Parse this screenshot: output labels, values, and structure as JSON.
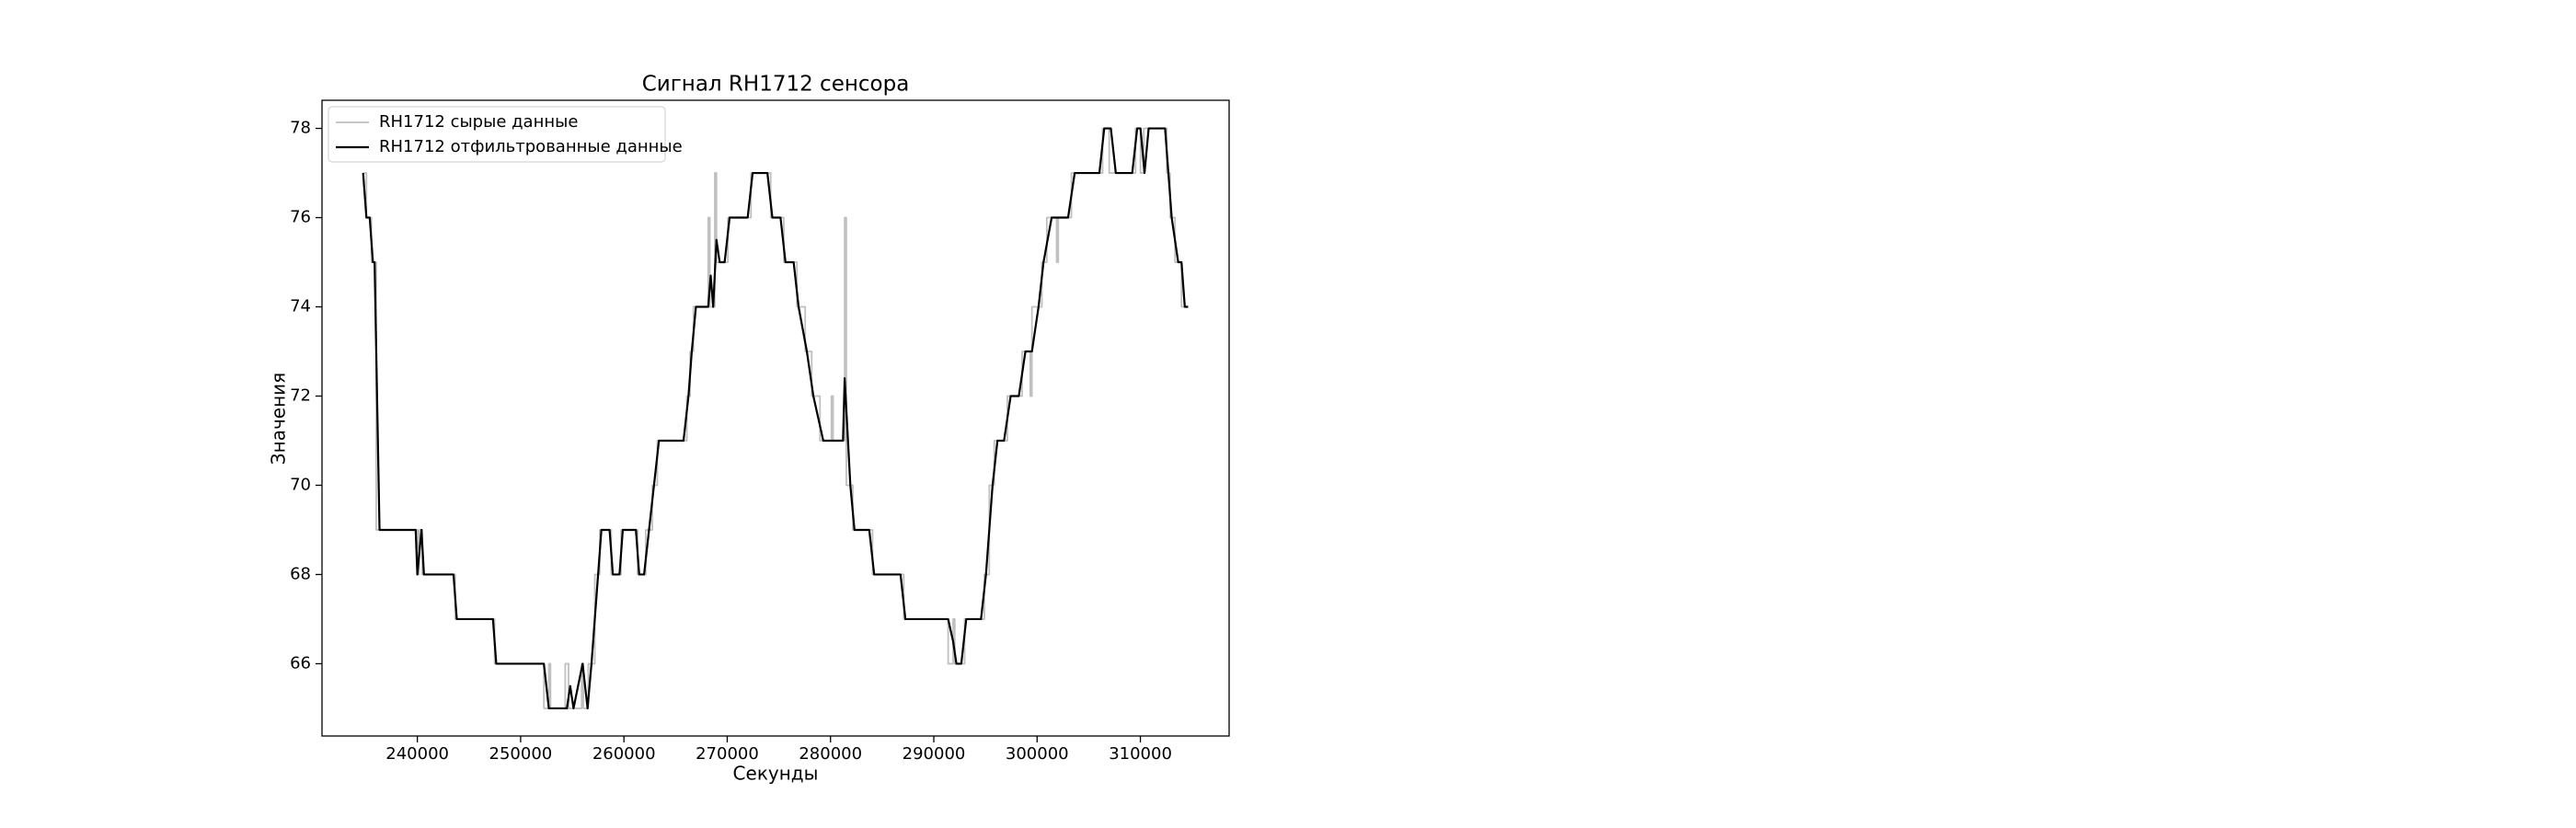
{
  "chart_data": {
    "type": "line",
    "title": "Сигнал RH1712 сенсора",
    "xlabel": "Секунды",
    "ylabel": "Значения",
    "xlim": [
      230770,
      318590
    ],
    "ylim": [
      64.38,
      78.63
    ],
    "xticks": [
      240000,
      250000,
      260000,
      270000,
      280000,
      290000,
      300000,
      310000
    ],
    "yticks": [
      66,
      68,
      70,
      72,
      74,
      76,
      78
    ],
    "grid": false,
    "legend": "upper left",
    "series": [
      {
        "name": "RH1712 сырые данные",
        "color": "#c0c0c0",
        "x": [
          234750,
          235070,
          235070,
          235550,
          235550,
          236020,
          236020,
          240000,
          240000,
          240160,
          240160,
          240480,
          240480,
          243660,
          243660,
          247480,
          247480,
          252250,
          252250,
          252730,
          252730,
          252890,
          252890,
          254320,
          254320,
          254640,
          254640,
          255910,
          255910,
          256070,
          256070,
          256550,
          256550,
          257180,
          257180,
          257660,
          257660,
          258770,
          258770,
          259730,
          259730,
          261320,
          261320,
          262110,
          262110,
          262750,
          262750,
          263230,
          263230,
          266090,
          266090,
          266410,
          266410,
          266730,
          266730,
          268160,
          268160,
          268320,
          268320,
          268800,
          268800,
          268960,
          268960,
          270070,
          270070,
          272300,
          272300,
          274210,
          274210,
          275480,
          275480,
          276750,
          276750,
          277550,
          277550,
          278180,
          278180,
          278980,
          278980,
          280090,
          280090,
          280250,
          280250,
          281370,
          281370,
          281530,
          281530,
          282160,
          282160,
          284070,
          284070,
          287090,
          287090,
          291390,
          291390,
          291870,
          291870,
          292030,
          292030,
          292980,
          292980,
          294890,
          294890,
          295370,
          295370,
          295850,
          295850,
          297120,
          297120,
          298550,
          298550,
          299340,
          299340,
          299500,
          299500,
          300460,
          300460,
          300940,
          300940,
          301890,
          301890,
          302050,
          302050,
          303320,
          303320,
          306340,
          306340,
          306980,
          306980,
          309530,
          309530,
          310010,
          310010,
          310330,
          310330,
          312550,
          312550,
          312870,
          312870,
          313350,
          313350,
          313980,
          313980,
          314620
        ],
        "values": [
          77,
          77,
          76,
          76,
          75,
          75,
          69,
          69,
          68,
          68,
          69,
          69,
          68,
          68,
          67,
          67,
          66,
          66,
          65,
          65,
          66,
          66,
          65,
          65,
          66,
          66,
          65,
          65,
          66,
          66,
          65,
          65,
          66,
          66,
          68,
          68,
          69,
          69,
          68,
          68,
          69,
          69,
          68,
          68,
          69,
          69,
          70,
          70,
          71,
          71,
          72,
          72,
          73,
          73,
          74,
          74,
          76,
          76,
          74,
          74,
          77,
          77,
          75,
          75,
          76,
          76,
          77,
          77,
          76,
          76,
          75,
          75,
          74,
          74,
          73,
          73,
          72,
          72,
          71,
          71,
          72,
          72,
          71,
          71,
          76,
          76,
          70,
          70,
          69,
          69,
          68,
          68,
          67,
          67,
          66,
          66,
          67,
          67,
          66,
          66,
          67,
          67,
          68,
          68,
          70,
          70,
          71,
          71,
          72,
          72,
          73,
          73,
          72,
          72,
          74,
          74,
          75,
          75,
          76,
          76,
          75,
          75,
          76,
          76,
          77,
          77,
          78,
          78,
          77,
          77,
          78,
          78,
          77,
          77,
          78,
          78,
          77,
          77,
          76,
          76,
          75,
          75,
          74,
          74
        ]
      },
      {
        "name": "RH1712 отфильтрованные данные",
        "color": "#000000",
        "x": [
          234750,
          235070,
          235390,
          235700,
          235860,
          236340,
          239840,
          240000,
          240400,
          240640,
          243500,
          243820,
          247320,
          247640,
          252250,
          252730,
          254480,
          254800,
          255120,
          256000,
          256480,
          256860,
          257180,
          257500,
          257820,
          258610,
          258930,
          259570,
          259890,
          261160,
          261480,
          261950,
          262430,
          262910,
          263390,
          265770,
          266250,
          266570,
          266970,
          268160,
          268400,
          268640,
          268960,
          269270,
          269750,
          270230,
          271980,
          272460,
          273890,
          274370,
          275160,
          275640,
          276430,
          276910,
          277710,
          278340,
          279300,
          281210,
          281370,
          281920,
          282320,
          283750,
          284230,
          286780,
          287250,
          291390,
          291870,
          292190,
          292660,
          293140,
          294570,
          295050,
          295690,
          296160,
          296800,
          297440,
          298230,
          298870,
          299500,
          300140,
          300620,
          301410,
          303000,
          303640,
          306030,
          306500,
          307140,
          307620,
          309210,
          309690,
          310010,
          310400,
          310800,
          312390,
          312710,
          313030,
          313660,
          313980,
          314300,
          314620
        ],
        "values": [
          77,
          76,
          76,
          75,
          75,
          69,
          69,
          68,
          69,
          68,
          68,
          67,
          67,
          66,
          66,
          65,
          65,
          65.5,
          65,
          66,
          65,
          66,
          67,
          68,
          69,
          69,
          68,
          68,
          69,
          69,
          68,
          68,
          69,
          70,
          71,
          71,
          72,
          73,
          74,
          74,
          74.7,
          74,
          75.5,
          75,
          75,
          76,
          76,
          77,
          77,
          76,
          76,
          75,
          75,
          74,
          73,
          72,
          71,
          71,
          72.4,
          70,
          69,
          69,
          68,
          68,
          67,
          67,
          66.5,
          66,
          66,
          67,
          67,
          68,
          70,
          71,
          71,
          72,
          72,
          73,
          73,
          74,
          75,
          76,
          76,
          77,
          77,
          78,
          78,
          77,
          77,
          78,
          78,
          77,
          78,
          78,
          77,
          76,
          75,
          75,
          74,
          74
        ]
      }
    ]
  }
}
